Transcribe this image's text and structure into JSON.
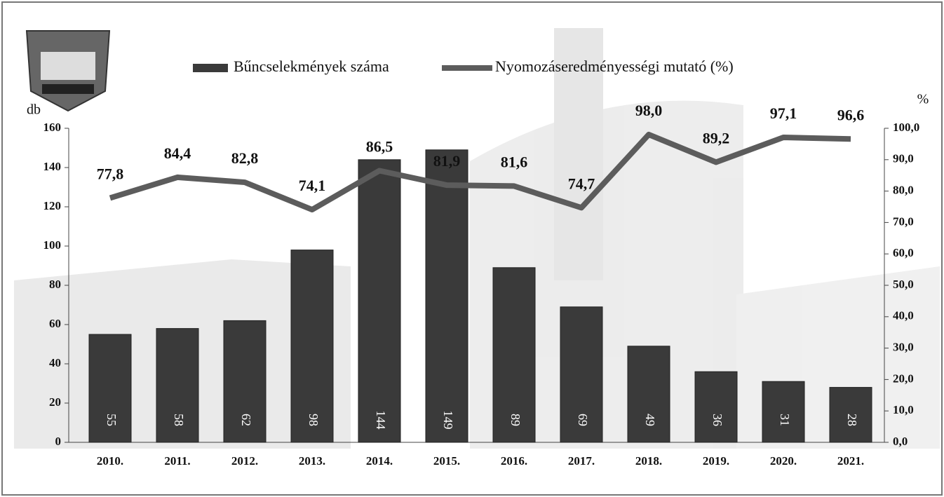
{
  "chart_data": {
    "type": "combo",
    "y_label": "db",
    "y2_label": "%",
    "categories": [
      "2010.",
      "2011.",
      "2012.",
      "2013.",
      "2014.",
      "2015.",
      "2016.",
      "2017.",
      "2018.",
      "2019.",
      "2020.",
      "2021."
    ],
    "series": [
      {
        "name": "Bűncselekmények száma",
        "type": "bar",
        "color": "#3a3a3a",
        "values": [
          55,
          58,
          62,
          98,
          144,
          149,
          89,
          69,
          49,
          36,
          31,
          28
        ]
      },
      {
        "name": "Nyomozáseredményességi mutató (%)",
        "type": "line",
        "axis": "y2",
        "color": "#5c5c5c",
        "values": [
          77.8,
          84.4,
          82.8,
          74.1,
          86.5,
          81.9,
          81.6,
          74.7,
          98.0,
          89.2,
          97.1,
          96.6
        ],
        "value_labels": [
          "77,8",
          "84,4",
          "82,8",
          "74,1",
          "86,5",
          "81,9",
          "81,6",
          "74,7",
          "98,0",
          "89,2",
          "97,1",
          "96,6"
        ]
      }
    ],
    "ylim": [
      0,
      160
    ],
    "yticks": [
      0,
      20,
      40,
      60,
      80,
      100,
      120,
      140,
      160
    ],
    "y2lim": [
      0,
      100
    ],
    "y2ticks": [
      {
        "value": 0,
        "label": "0,0"
      },
      {
        "value": 10,
        "label": "10,0"
      },
      {
        "value": 20,
        "label": "20,0"
      },
      {
        "value": 30,
        "label": "30,0"
      },
      {
        "value": 40,
        "label": "40,0"
      },
      {
        "value": 50,
        "label": "50,0"
      },
      {
        "value": 60,
        "label": "60,0"
      },
      {
        "value": 70,
        "label": "70,0"
      },
      {
        "value": 80,
        "label": "80,0"
      },
      {
        "value": 90,
        "label": "90,0"
      },
      {
        "value": 100,
        "label": "100,0"
      }
    ],
    "legend": "top"
  }
}
